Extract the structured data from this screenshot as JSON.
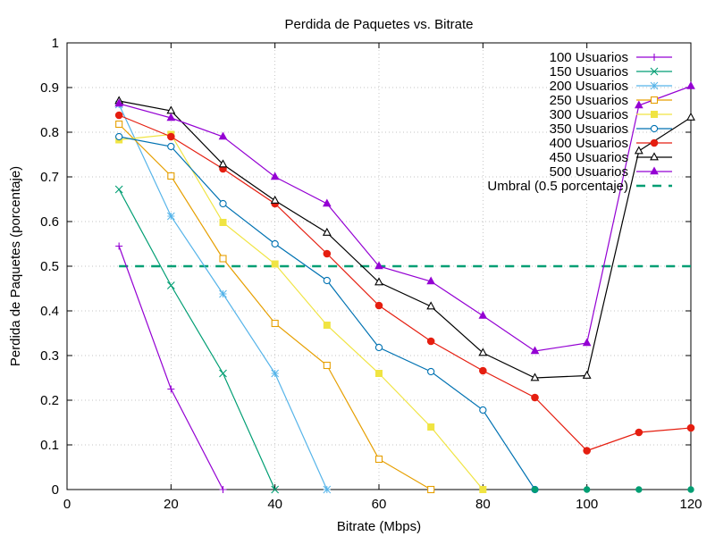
{
  "chart_data": {
    "type": "line",
    "title": "Perdida de Paquetes vs. Bitrate",
    "xlabel": "Bitrate (Mbps)",
    "ylabel": "Perdida de Paquetes (porcentaje)",
    "xlim": [
      0,
      120
    ],
    "ylim": [
      0,
      1
    ],
    "xticks": [
      0,
      20,
      40,
      60,
      80,
      100,
      120
    ],
    "yticks": [
      0,
      0.1,
      0.2,
      0.3,
      0.4,
      0.5,
      0.6,
      0.7,
      0.8,
      0.9,
      1
    ],
    "xtick_labels": [
      "0",
      "20",
      "40",
      "60",
      "80",
      "100",
      "120"
    ],
    "ytick_labels": [
      "0",
      "0.1",
      "0.2",
      "0.3",
      "0.4",
      "0.5",
      "0.6",
      "0.7",
      "0.8",
      "0.9",
      "1"
    ],
    "grid": true,
    "legend_position": "top-right",
    "series": [
      {
        "name": "100 Usuarios",
        "color": "#9400d3",
        "marker": "plus",
        "x": [
          10,
          20,
          30
        ],
        "y": [
          0.545,
          0.225,
          0.0
        ]
      },
      {
        "name": "150 Usuarios",
        "color": "#009e73",
        "marker": "cross",
        "x": [
          10,
          20,
          30,
          40
        ],
        "y": [
          0.672,
          0.457,
          0.26,
          0.0
        ]
      },
      {
        "name": "200 Usuarios",
        "color": "#56b4e9",
        "marker": "star",
        "x": [
          10,
          20,
          30,
          40,
          50
        ],
        "y": [
          0.862,
          0.612,
          0.438,
          0.26,
          0.0
        ]
      },
      {
        "name": "250 Usuarios",
        "color": "#e69f00",
        "marker": "open-square",
        "x": [
          10,
          20,
          30,
          40,
          50,
          60,
          70
        ],
        "y": [
          0.818,
          0.702,
          0.517,
          0.372,
          0.278,
          0.068,
          0.0
        ]
      },
      {
        "name": "300 Usuarios",
        "color": "#f0e442",
        "marker": "filled-square",
        "x": [
          10,
          20,
          30,
          40,
          50,
          60,
          70,
          80
        ],
        "y": [
          0.783,
          0.795,
          0.598,
          0.505,
          0.368,
          0.26,
          0.14,
          0.0
        ]
      },
      {
        "name": "350 Usuarios",
        "color": "#0072b2",
        "marker": "open-circle",
        "x": [
          10,
          20,
          30,
          40,
          50,
          60,
          70,
          80,
          90
        ],
        "y": [
          0.79,
          0.768,
          0.64,
          0.55,
          0.468,
          0.318,
          0.264,
          0.178,
          0.0
        ]
      },
      {
        "name": "400 Usuarios",
        "color": "#e51e10",
        "marker": "filled-circle",
        "x": [
          10,
          20,
          30,
          40,
          50,
          60,
          70,
          80,
          90,
          100,
          110,
          120
        ],
        "y": [
          0.838,
          0.79,
          0.718,
          0.64,
          0.528,
          0.412,
          0.332,
          0.266,
          0.206,
          0.087,
          0.128,
          0.138
        ]
      },
      {
        "name": "450 Usuarios",
        "color": "#000000",
        "marker": "open-triangle",
        "x": [
          10,
          20,
          30,
          40,
          50,
          60,
          70,
          80,
          90,
          100,
          110,
          120
        ],
        "y": [
          0.87,
          0.848,
          0.728,
          0.647,
          0.575,
          0.464,
          0.41,
          0.306,
          0.25,
          0.255,
          0.758,
          0.833
        ]
      },
      {
        "name": "500 Usuarios",
        "color": "#9400d3",
        "marker": "filled-triangle",
        "x": [
          10,
          20,
          30,
          40,
          50,
          60,
          70,
          80,
          90,
          100,
          110,
          120
        ],
        "y": [
          0.864,
          0.832,
          0.79,
          0.7,
          0.64,
          0.5,
          0.466,
          0.389,
          0.31,
          0.328,
          0.86,
          0.903
        ]
      }
    ],
    "threshold": {
      "name": "Umbral (0.5 porcentaje)",
      "value": 0.5,
      "x_start": 10,
      "x_end": 120,
      "color": "#009e73",
      "dash": true
    },
    "zero_markers": {
      "color": "#009e73",
      "x": [
        90,
        100,
        110,
        120
      ],
      "y": [
        0,
        0,
        0,
        0
      ]
    }
  }
}
